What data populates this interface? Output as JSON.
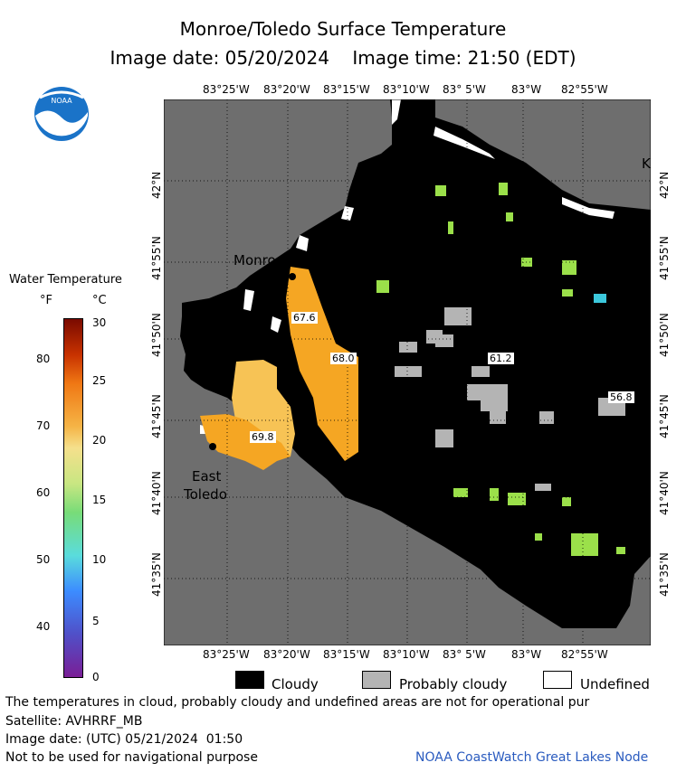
{
  "title": "Monroe/Toledo Surface Temperature",
  "image_date_line": "Image date: 05/20/2024    Image time: 21:50 (EDT)",
  "logo_text": "NOAA",
  "colorbar": {
    "title": "Water Temperature",
    "unit_f": "°F",
    "unit_c": "°C",
    "f_ticks": [
      "80",
      "70",
      "60",
      "50",
      "40"
    ],
    "c_ticks": [
      "30",
      "25",
      "20",
      "15",
      "10",
      "5",
      "0"
    ]
  },
  "map": {
    "lon_labels": [
      "83°25'W",
      "83°20'W",
      "83°15'W",
      "83°10'W",
      "83° 5'W",
      "83°W",
      "82°55'W"
    ],
    "lat_labels": [
      "42°N",
      "41°55'N",
      "41°50'N",
      "41°45'N",
      "41°40'N",
      "41°35'N"
    ],
    "places": {
      "monroe": "Monroe",
      "east": "East",
      "toledo": "Toledo",
      "edge_k": "K"
    },
    "temp_labels": [
      "67.6",
      "68.0",
      "61.2",
      "56.8",
      "69.8"
    ]
  },
  "legend": {
    "cloudy": "Cloudy",
    "probably_cloudy": "Probably cloudy",
    "undefined": "Undefined"
  },
  "footer": {
    "line1": "The temperatures in cloud, probably cloudy and undefined areas are not for operational pur",
    "line2": "Satellite: AVHRRF_MB",
    "line3": "Image date: (UTC) 05/21/2024  01:50",
    "line4": "Not to be used for navigational purpose",
    "credit": "NOAA CoastWatch Great Lakes Node"
  },
  "colors": {
    "land": "#6e6e6e",
    "cloudy": "#000000",
    "probably_cloudy": "#b4b4b4",
    "undefined": "#ffffff",
    "warm": "#f5a623",
    "green": "#9be04a"
  }
}
